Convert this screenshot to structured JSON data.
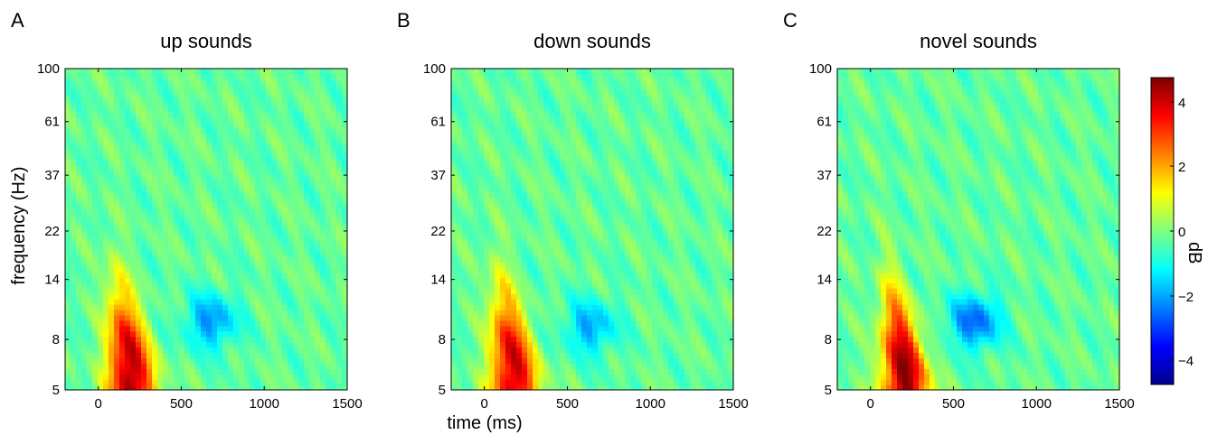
{
  "figure": {
    "xlabel": "time (ms)",
    "ylabel": "frequency (Hz)",
    "colorbar_label": "dB",
    "colorbar_ticks": [
      "4",
      "2",
      "0",
      "−2",
      "−4"
    ]
  },
  "chart_data": [
    {
      "type": "heatmap",
      "panel_letter": "A",
      "title": "up sounds",
      "xlabel": "",
      "ylabel": "frequency (Hz)",
      "x_ticks": [
        0,
        500,
        1000,
        1500
      ],
      "y_ticks": [
        5,
        8,
        14,
        22,
        37,
        61,
        100
      ],
      "xlim": [
        -200,
        1500
      ],
      "ylim": [
        5,
        100
      ],
      "y_scale": "log",
      "zlim": [
        -4.5,
        4.5
      ],
      "features": [
        {
          "kind": "peak",
          "t_ms": 200,
          "freq_hz": 6,
          "value_db": 4.5
        },
        {
          "kind": "trough",
          "t_ms": 680,
          "freq_hz": 9.5,
          "value_db": -1.8
        }
      ]
    },
    {
      "type": "heatmap",
      "panel_letter": "B",
      "title": "down sounds",
      "xlabel": "time (ms)",
      "ylabel": "",
      "x_ticks": [
        0,
        500,
        1000,
        1500
      ],
      "y_ticks": [
        5,
        8,
        14,
        22,
        37,
        61,
        100
      ],
      "xlim": [
        -200,
        1500
      ],
      "ylim": [
        5,
        100
      ],
      "y_scale": "log",
      "zlim": [
        -4.5,
        4.5
      ],
      "features": [
        {
          "kind": "peak",
          "t_ms": 180,
          "freq_hz": 6,
          "value_db": 4.2
        },
        {
          "kind": "trough",
          "t_ms": 640,
          "freq_hz": 9,
          "value_db": -1.6
        }
      ]
    },
    {
      "type": "heatmap",
      "panel_letter": "C",
      "title": "novel sounds",
      "xlabel": "",
      "ylabel": "",
      "x_ticks": [
        0,
        500,
        1000,
        1500
      ],
      "y_ticks": [
        5,
        8,
        14,
        22,
        37,
        61,
        100
      ],
      "xlim": [
        -200,
        1500
      ],
      "ylim": [
        5,
        100
      ],
      "y_scale": "log",
      "zlim": [
        -4.5,
        4.5
      ],
      "features": [
        {
          "kind": "peak",
          "t_ms": 210,
          "freq_hz": 5.8,
          "value_db": 4.6
        },
        {
          "kind": "trough",
          "t_ms": 630,
          "freq_hz": 9.5,
          "value_db": -2.2
        }
      ]
    }
  ]
}
